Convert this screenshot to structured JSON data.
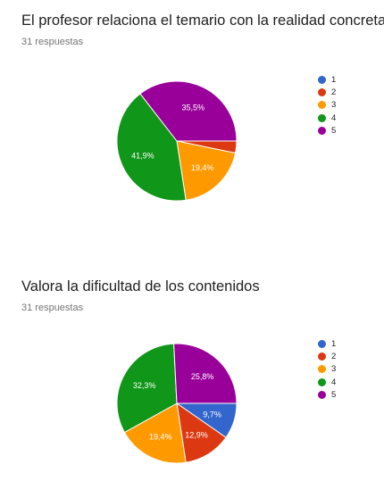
{
  "chart_data": [
    {
      "type": "pie",
      "title": "El profesor relaciona el temario con la realidad concreta",
      "subtitle": "31 respuestas",
      "categories": [
        "1",
        "2",
        "3",
        "4",
        "5"
      ],
      "values": [
        0,
        1,
        6,
        13,
        11
      ],
      "percent_labels": [
        "",
        "",
        "19,4%",
        "41,9%",
        "35,5%"
      ],
      "colors": [
        "#3366cc",
        "#dc3912",
        "#ff9900",
        "#109618",
        "#990099"
      ],
      "legend_position": "right"
    },
    {
      "type": "pie",
      "title": "Valora la dificultad de los contenidos",
      "subtitle": "31 respuestas",
      "categories": [
        "1",
        "2",
        "3",
        "4",
        "5"
      ],
      "values": [
        3,
        4,
        6,
        10,
        8
      ],
      "percent_labels": [
        "9,7%",
        "12,9%",
        "19,4%",
        "32,3%",
        "25,8%"
      ],
      "colors": [
        "#3366cc",
        "#dc3912",
        "#ff9900",
        "#109618",
        "#990099"
      ],
      "legend_position": "right"
    }
  ]
}
